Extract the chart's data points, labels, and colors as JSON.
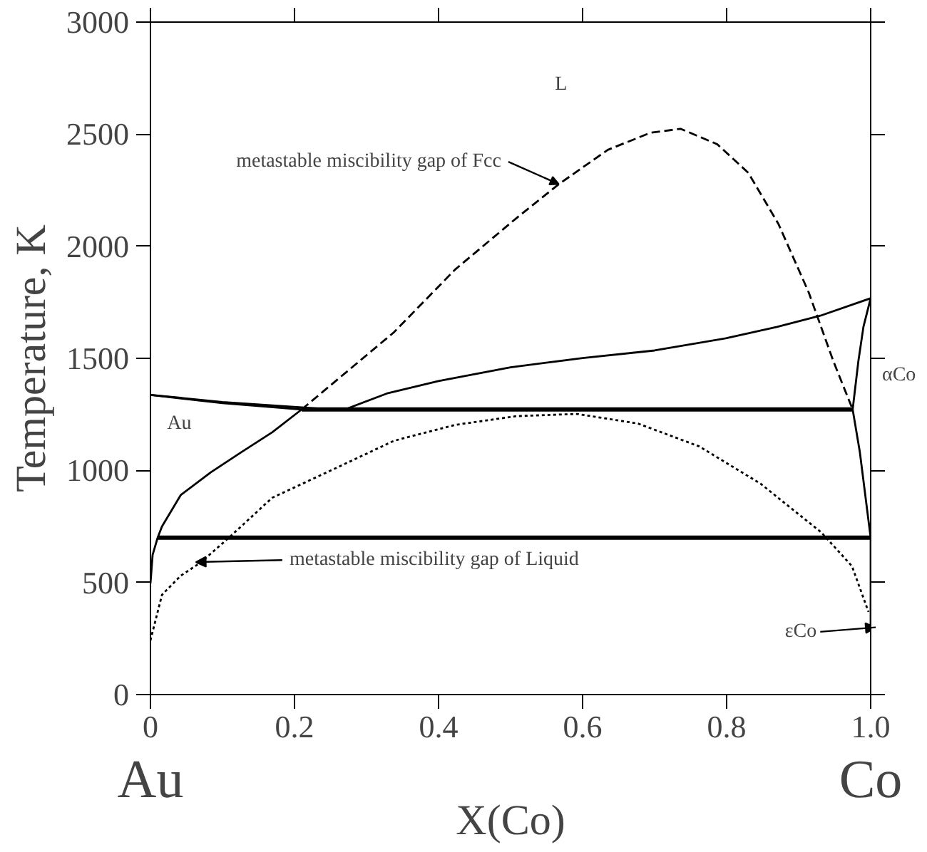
{
  "chart_data": {
    "type": "line",
    "xlabel": "X(Co)",
    "ylabel": "Temperature, K",
    "xlim": [
      0,
      1
    ],
    "ylim": [
      0,
      3000
    ],
    "xticks": [
      0,
      0.2,
      0.4,
      0.6,
      0.8,
      {
        "value": 1,
        "label": "1.0"
      }
    ],
    "yticks": [
      0,
      500,
      1000,
      1500,
      2000,
      2500,
      3000
    ],
    "grid": false,
    "marker": "none",
    "series": [
      {
        "color": "#000000",
        "line_style": "solid",
        "x": [
          0,
          0.1,
          0.25
        ],
        "values": [
          1337,
          1305,
          1272
        ]
      },
      {
        "color": "#000000",
        "line_style": "solid",
        "x": [
          0,
          0.1,
          0.21
        ],
        "values": [
          1337,
          1300,
          1272
        ]
      },
      {
        "color": "#000000",
        "line_style": "solid",
        "x": [
          0.27,
          0.33,
          0.4,
          0.5,
          0.6,
          0.7,
          0.8,
          0.87,
          0.93,
          1.0
        ],
        "values": [
          1272,
          1345,
          1399,
          1460,
          1501,
          1535,
          1590,
          1640,
          1690,
          1768
        ]
      },
      {
        "color": "#000000",
        "line_style": "solid",
        "x": [
          0.21,
          0.169,
          0.126,
          0.084,
          0.042,
          0.016,
          0.01,
          0.003,
          0
        ],
        "values": [
          1272,
          1170,
          1081,
          992,
          890,
          750,
          700,
          623,
          496
        ]
      },
      {
        "color": "#000000",
        "line_style": "solid",
        "x": [
          0.21,
          0.975
        ],
        "values": [
          1272,
          1272
        ]
      },
      {
        "color": "#000000",
        "line_style": "solid",
        "x": [
          0.01,
          1.0
        ],
        "values": [
          700,
          700
        ]
      },
      {
        "color": "#000000",
        "line_style": "solid",
        "x": [
          1.0,
          0.99,
          0.983,
          0.975,
          0.985,
          0.992,
          0.997,
          1.0,
          1.0
        ],
        "values": [
          1768,
          1641,
          1489,
          1272,
          1081,
          903,
          776,
          700,
          300
        ]
      },
      {
        "color": "#000000",
        "line_style": "dashed",
        "x": [
          0.21,
          0.338,
          0.423,
          0.508,
          0.567,
          0.635,
          0.694,
          0.736,
          0.787,
          0.83,
          0.872,
          0.914,
          0.948,
          0.975
        ],
        "values": [
          1272,
          1616,
          1896,
          2125,
          2277,
          2430,
          2506,
          2524,
          2455,
          2328,
          2099,
          1794,
          1489,
          1272
        ]
      },
      {
        "color": "#000000",
        "line_style": "dotted",
        "x": [
          0,
          0.016,
          0.042,
          0.07,
          0.109,
          0.169,
          0.254,
          0.338,
          0.423,
          0.508,
          0.592,
          0.677,
          0.762,
          0.847,
          0.931,
          0.974,
          0.997
        ],
        "values": [
          242,
          445,
          530,
          590,
          700,
          878,
          1005,
          1132,
          1203,
          1242,
          1252,
          1209,
          1107,
          941,
          725,
          573,
          369
        ]
      }
    ],
    "annotations": [
      "L",
      "Au",
      "αCo",
      {
        "text": "metastable miscibility gap of Fcc",
        "x": 0.567,
        "y": 2277
      },
      "metastable miscibility gap of Liquid",
      {
        "text": "εCo",
        "x": 1.0,
        "y": 300
      },
      "Au",
      "Co"
    ]
  }
}
